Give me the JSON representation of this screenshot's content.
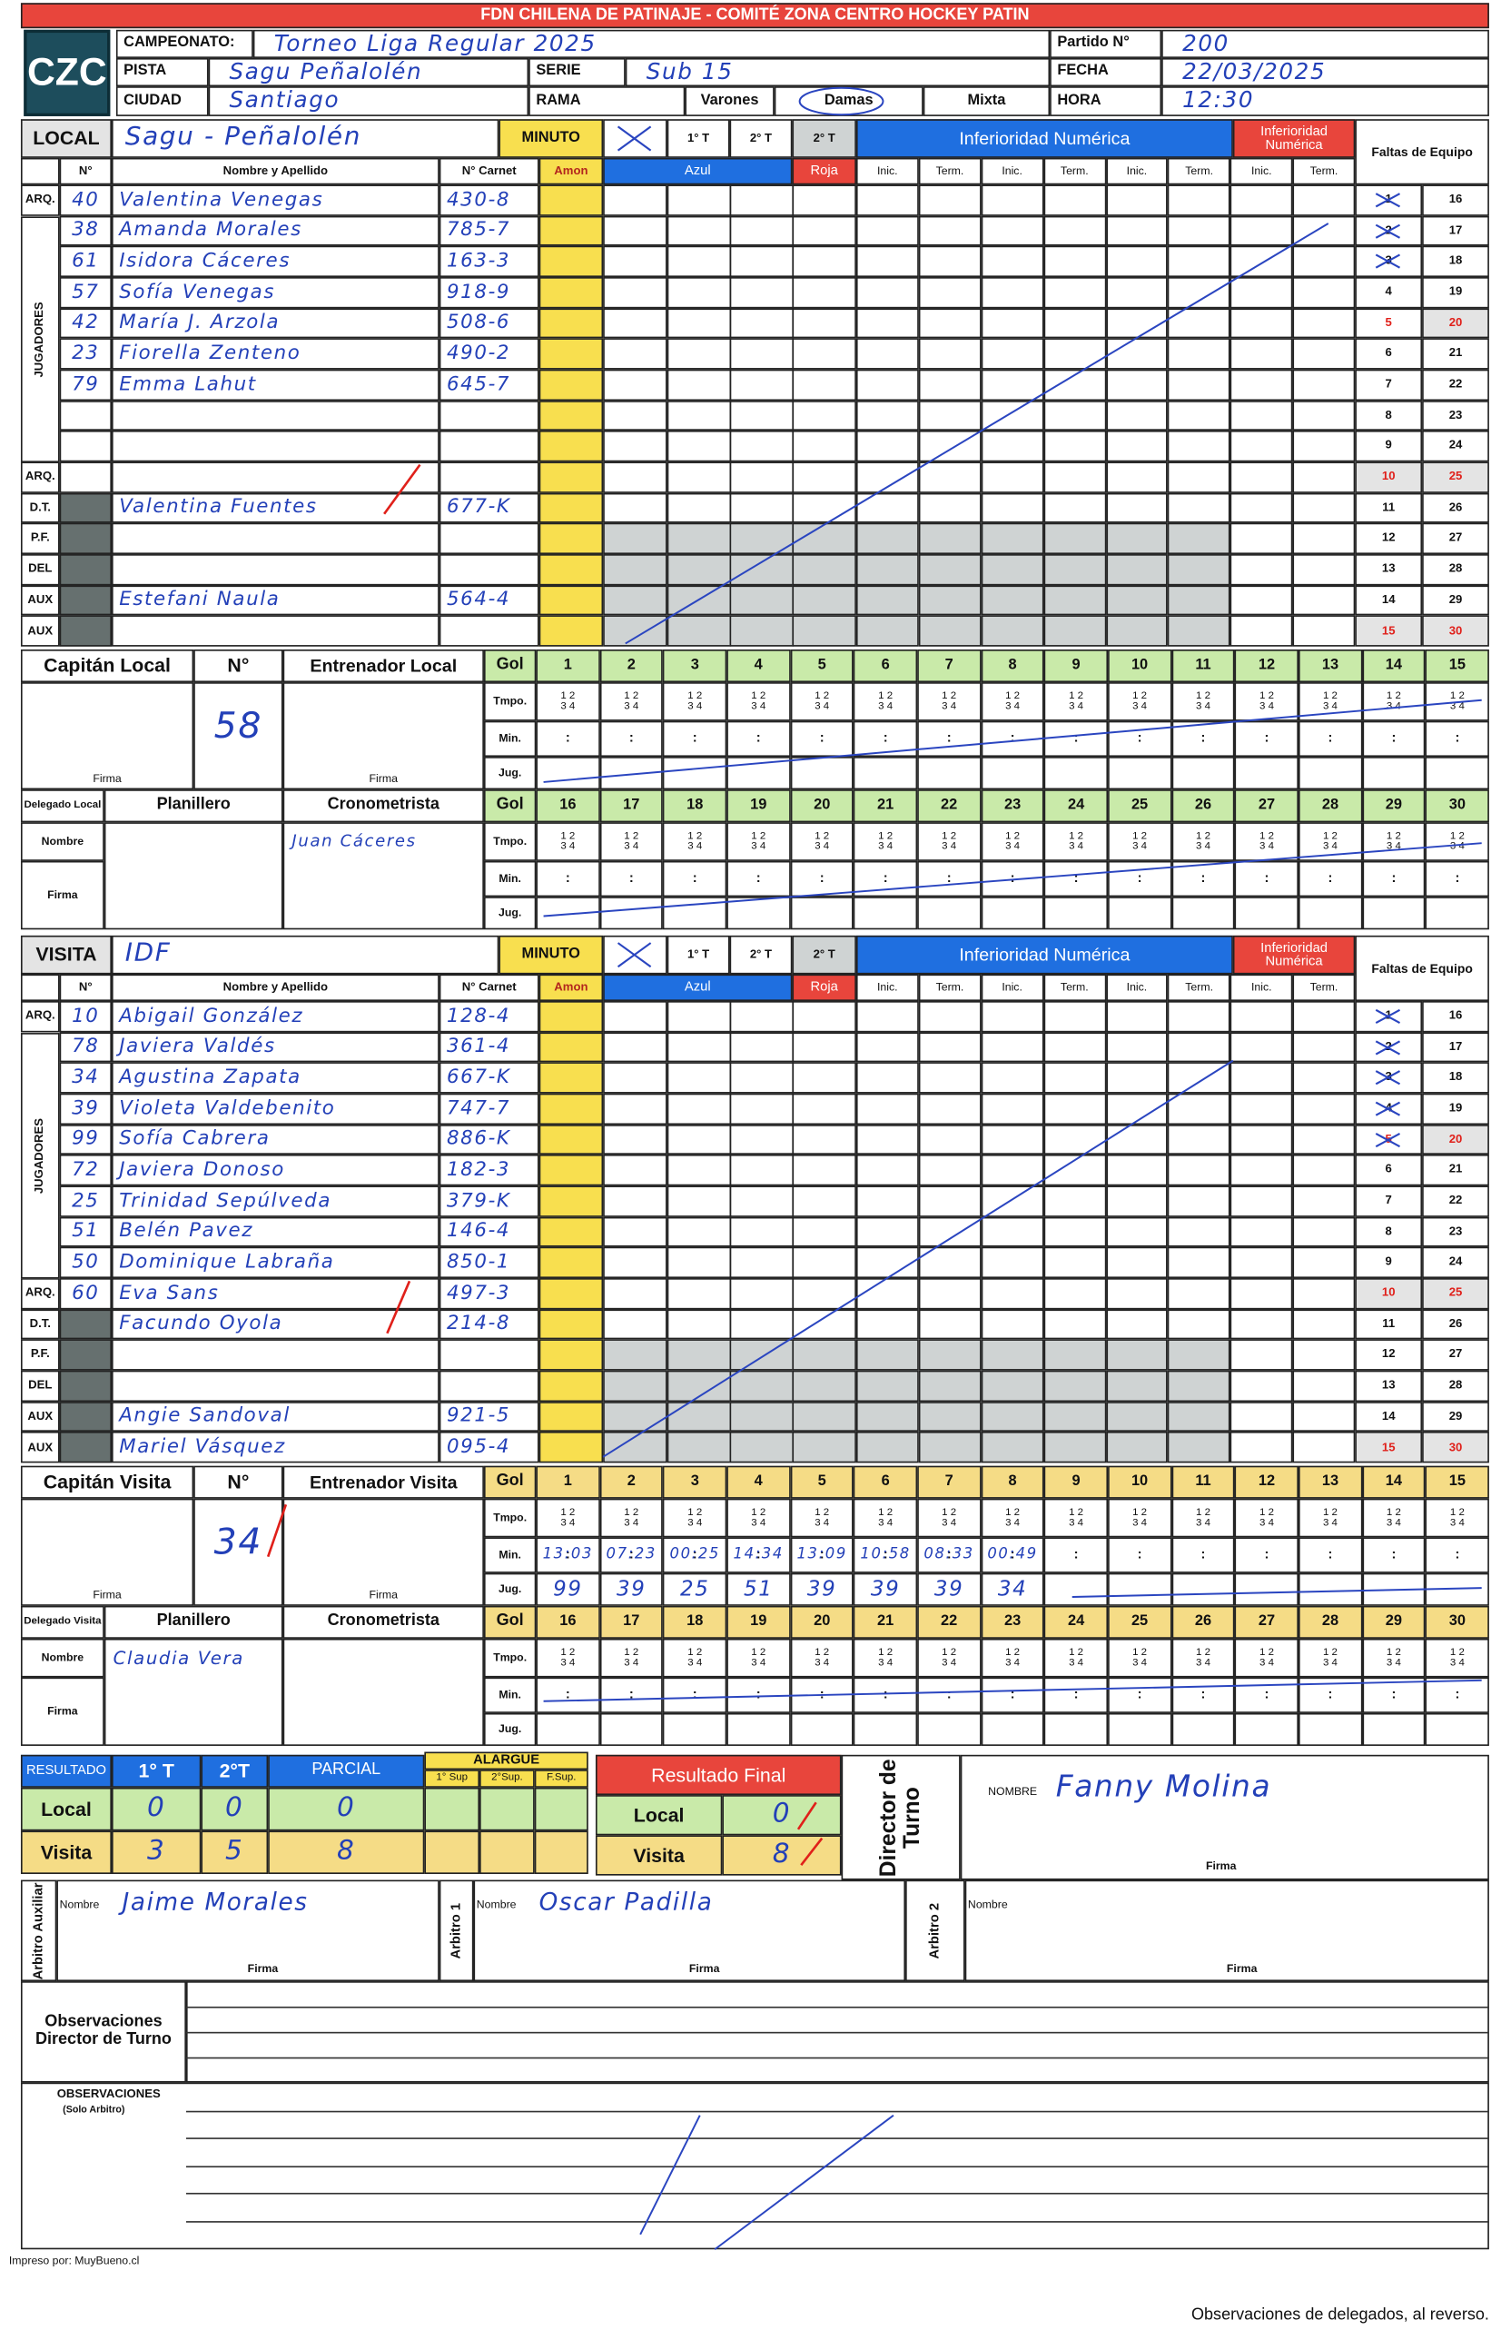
{
  "header": {
    "title": "FDN CHILENA DE PATINAJE - COMITÉ ZONA CENTRO HOCKEY PATIN",
    "logo": "CZC",
    "campeonato_label": "CAMPEONATO:",
    "campeonato": "Torneo Liga Regular 2025",
    "partido_label": "Partido N°",
    "partido": "200",
    "pista_label": "PISTA",
    "pista": "Sagu Peñalolén",
    "serie_label": "SERIE",
    "serie": "Sub 15",
    "fecha_label": "FECHA",
    "fecha": "22/03/2025",
    "ciudad_label": "CIUDAD",
    "ciudad": "Santiago",
    "rama_label": "RAMA",
    "rama_options": [
      "Varones",
      "Damas",
      "Mixta"
    ],
    "hora_label": "HORA",
    "hora": "12:30"
  },
  "sheet": {
    "minuto": "MINUTO",
    "periods": [
      "1° T",
      "2° T",
      "2° T"
    ],
    "inferioridad": "Inferioridad Numérica",
    "faltas": "Faltas de Equipo",
    "n": "N°",
    "nombre": "Nombre y Apellido",
    "carnet": "N° Carnet",
    "amon": "Amon",
    "azul": "Azul",
    "roja": "Roja",
    "inic": "Inic.",
    "term": "Term.",
    "jugadores": "JUGADORES",
    "role_labels": [
      "ARQ.",
      "ARQ.",
      "D.T.",
      "P.F.",
      "DEL",
      "AUX",
      "AUX"
    ],
    "foul_numbers_a": [
      1,
      2,
      3,
      4,
      5,
      6,
      7,
      8,
      9,
      10,
      11,
      12,
      13,
      14,
      15
    ],
    "foul_numbers_b": [
      16,
      17,
      18,
      19,
      20,
      21,
      22,
      23,
      24,
      25,
      26,
      27,
      28,
      29,
      30
    ],
    "gol": "Gol",
    "tmpo": "Tmpo.",
    "min": "Min.",
    "jug": "Jug.",
    "tmpo_marks": [
      "1 2",
      "3 4"
    ],
    "min_sep": ":",
    "gol_numbers_a": [
      1,
      2,
      3,
      4,
      5,
      6,
      7,
      8,
      9,
      10,
      11,
      12,
      13,
      14,
      15
    ],
    "gol_numbers_b": [
      16,
      17,
      18,
      19,
      20,
      21,
      22,
      23,
      24,
      25,
      26,
      27,
      28,
      29,
      30
    ]
  },
  "teams": [
    {
      "label": "LOCAL",
      "name": "Sagu - Peñalolén",
      "gol_color": "#c9eaa9",
      "fouls_marked": 3,
      "rows": [
        {
          "number": 40,
          "name": "Valentina Venegas",
          "carnet": "430-8"
        },
        {
          "number": 38,
          "name": "Amanda Morales",
          "carnet": "785-7"
        },
        {
          "number": 61,
          "name": "Isidora Cáceres",
          "carnet": "163-3"
        },
        {
          "number": 57,
          "name": "Sofía Venegas",
          "carnet": "918-9"
        },
        {
          "number": 42,
          "name": "María J. Arzola",
          "carnet": "508-6"
        },
        {
          "number": 23,
          "name": "Fiorella Zenteno",
          "carnet": "490-2"
        },
        {
          "number": 79,
          "name": "Emma Lahut",
          "carnet": "645-7"
        },
        null,
        null,
        null,
        {
          "name": "Valentina Fuentes",
          "carnet": "677-K"
        },
        null,
        null,
        {
          "name": "Estefani Naula",
          "carnet": "564-4"
        },
        null
      ],
      "captain_label": "Capitán Local",
      "number_label": "N°",
      "captain_number": 58,
      "coach_label": "Entrenador Local",
      "firma_label": "Firma",
      "delegate_label": "Delegado Local",
      "planillero_label": "Planillero",
      "crono_label": "Cronometrista",
      "nombre_label": "Nombre",
      "cronometrista": "Juan Cáceres",
      "goals": {
        "min": [],
        "jug": []
      }
    },
    {
      "label": "VISITA",
      "name": "IDF",
      "gol_color": "#f5dc86",
      "fouls_marked": 5,
      "rows": [
        {
          "number": 10,
          "name": "Abigail González",
          "carnet": "128-4"
        },
        {
          "number": 78,
          "name": "Javiera Valdés",
          "carnet": "361-4"
        },
        {
          "number": 34,
          "name": "Agustina Zapata",
          "carnet": "667-K"
        },
        {
          "number": 39,
          "name": "Violeta Valdebenito",
          "carnet": "747-7"
        },
        {
          "number": 99,
          "name": "Sofía Cabrera",
          "carnet": "886-K"
        },
        {
          "number": 72,
          "name": "Javiera Donoso",
          "carnet": "182-3"
        },
        {
          "number": 25,
          "name": "Trinidad Sepúlveda",
          "carnet": "379-K"
        },
        {
          "number": 51,
          "name": "Belén Pavez",
          "carnet": "146-4"
        },
        {
          "number": 50,
          "name": "Dominique Labraña",
          "carnet": "850-1"
        },
        {
          "number": 60,
          "name": "Eva Sans",
          "carnet": "497-3"
        },
        {
          "name": "Facundo Oyola",
          "carnet": "214-8"
        },
        null,
        null,
        {
          "name": "Angie Sandoval",
          "carnet": "921-5"
        },
        {
          "name": "Mariel Vásquez",
          "carnet": "095-4"
        }
      ],
      "captain_label": "Capitán Visita",
      "number_label": "N°",
      "captain_number": 34,
      "coach_label": "Entrenador Visita",
      "firma_label": "Firma",
      "delegate_label": "Delegado Visita",
      "planillero_label": "Planillero",
      "crono_label": "Cronometrista",
      "nombre_label": "Nombre",
      "planillero": "Claudia Vera",
      "goals": {
        "min": [
          "13:03",
          "07:23",
          "00:25",
          "14:34",
          "13:09",
          "10:58",
          "08:33",
          "00:49"
        ],
        "jug": [
          99,
          39,
          25,
          51,
          39,
          39,
          39,
          34
        ]
      }
    }
  ],
  "result": {
    "title": "RESULTADO",
    "cols": [
      "1° T",
      "2°T",
      "PARCIAL"
    ],
    "alargue": "ALARGUE",
    "alargue_cols": [
      "1° Sup",
      "2°Sup.",
      "F.Sup."
    ],
    "rows": [
      {
        "label": "Local",
        "values": [
          0,
          0,
          0
        ]
      },
      {
        "label": "Visita",
        "values": [
          3,
          5,
          8
        ]
      }
    ],
    "final_title": "Resultado Final",
    "final": [
      {
        "label": "Local",
        "value": 0
      },
      {
        "label": "Visita",
        "value": 8
      }
    ]
  },
  "director": {
    "label": "Director de Turno",
    "nombre_label": "NOMBRE",
    "nombre": "Fanny Molina",
    "firma_label": "Firma"
  },
  "arbitros": [
    {
      "label": "Arbitro Auxiliar",
      "nombre_label": "Nombre",
      "nombre": "Jaime Morales",
      "firma_label": "Firma"
    },
    {
      "label": "Arbitro 1",
      "nombre_label": "Nombre",
      "nombre": "Oscar Padilla",
      "firma_label": "Firma"
    },
    {
      "label": "Arbitro 2",
      "nombre_label": "Nombre",
      "firma_label": "Firma"
    }
  ],
  "observaciones": {
    "director_label": "Observaciones Director de Turno",
    "arbitro_label": "OBSERVACIONES",
    "arbitro_note": "(Solo Arbitro)"
  },
  "footer": {
    "printed_by": "Impreso por: MuyBueno.cl",
    "note": "Observaciones de delegados, al reverso."
  }
}
